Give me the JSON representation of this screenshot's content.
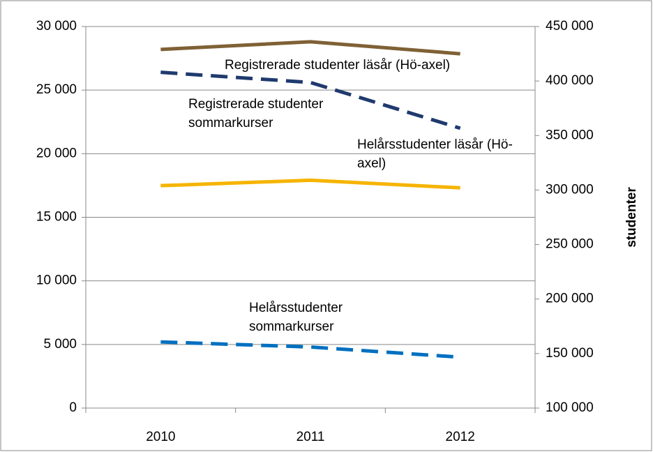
{
  "chart_data": {
    "type": "line",
    "categories": [
      "2010",
      "2011",
      "2012"
    ],
    "series": [
      {
        "name": "Registrerade studenter läsår (Hö-axel)",
        "color": "#7f6136",
        "axis": "y2",
        "dashed": false,
        "values": [
          429000,
          436000,
          425000
        ]
      },
      {
        "name": "Registrerade studenter sommarkurser",
        "color": "#1f3a6e",
        "dashed": true,
        "values": [
          26400,
          25600,
          22000
        ]
      },
      {
        "name": "Helårsstudenter läsår (Hö-axel)",
        "color": "#f5b400",
        "axis": "y2",
        "dashed": false,
        "values": [
          304000,
          309000,
          302000
        ]
      },
      {
        "name": "Helårsstudenter sommarkurser",
        "color": "#0070c0",
        "dashed": true,
        "values": [
          5200,
          4800,
          4000
        ]
      }
    ],
    "ylim": [
      0,
      30000
    ],
    "yticks": [
      0,
      {
        "value": 5000,
        "label": "5 000"
      },
      {
        "value": 10000,
        "label": "10 000"
      },
      {
        "value": 15000,
        "label": "15 000"
      },
      {
        "value": 20000,
        "label": "20 000"
      },
      {
        "value": 25000,
        "label": "25 000"
      },
      {
        "value": 30000,
        "label": "30 000"
      }
    ],
    "y2lim": [
      100000,
      450000
    ],
    "y2ticks": [
      {
        "value": 100000,
        "label": "100 000"
      },
      {
        "value": 150000,
        "label": "150 000"
      },
      {
        "value": 200000,
        "label": "200 000"
      },
      {
        "value": 250000,
        "label": "250 000"
      },
      {
        "value": 300000,
        "label": "300 000"
      },
      {
        "value": 350000,
        "label": "350 000"
      },
      {
        "value": 400000,
        "label": "400 000"
      },
      {
        "value": 450000,
        "label": "450 000"
      }
    ],
    "y2label": "studenter",
    "grid": true
  }
}
